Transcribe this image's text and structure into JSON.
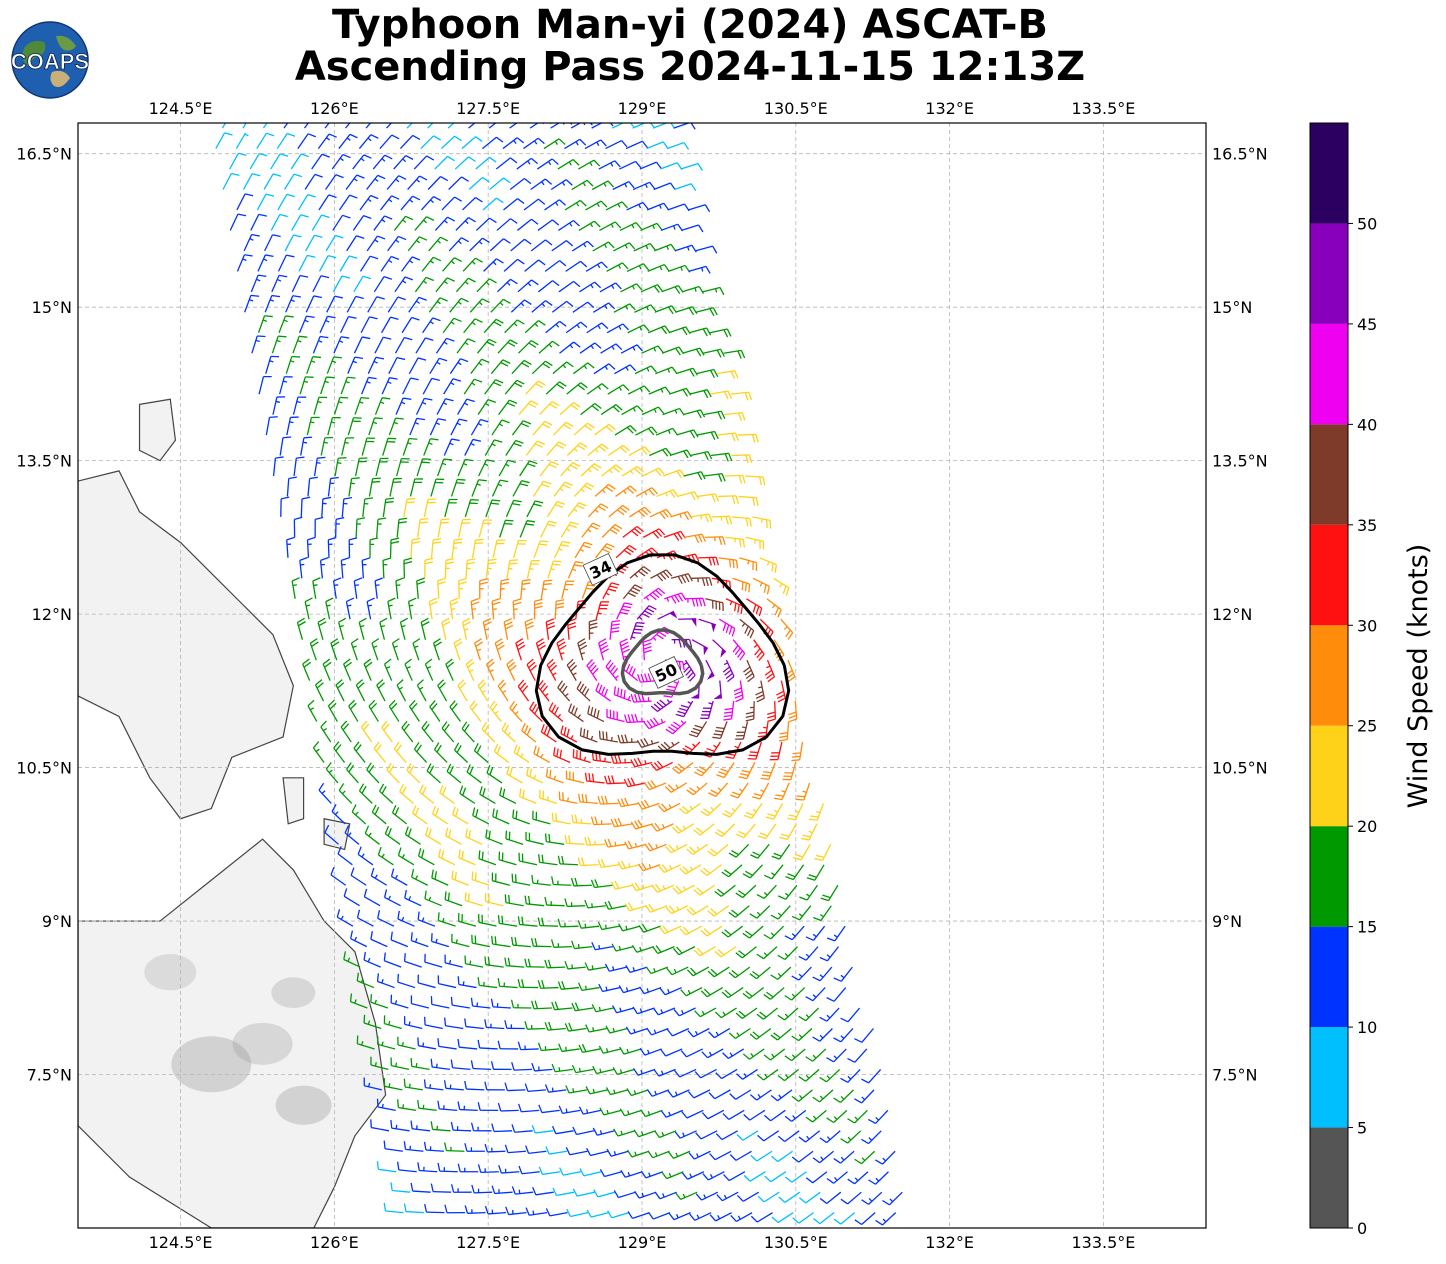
{
  "title": {
    "line1": "Typhoon Man-yi (2024) ASCAT-B",
    "line2": "Ascending Pass 2024-11-15 12:13Z"
  },
  "logo": {
    "text": "COAPS",
    "icon": "globe-logo-icon"
  },
  "map": {
    "lon_range": [
      123.5,
      134.5
    ],
    "lat_range": [
      6.0,
      16.8
    ],
    "lon_ticks": [
      {
        "value": 124.5,
        "label": "124.5°E"
      },
      {
        "value": 126.0,
        "label": "126°E"
      },
      {
        "value": 127.5,
        "label": "127.5°E"
      },
      {
        "value": 129.0,
        "label": "129°E"
      },
      {
        "value": 130.5,
        "label": "130.5°E"
      },
      {
        "value": 132.0,
        "label": "132°E"
      },
      {
        "value": 133.5,
        "label": "133.5°E"
      }
    ],
    "lat_ticks": [
      {
        "value": 16.5,
        "label": "16.5°N"
      },
      {
        "value": 15.0,
        "label": "15°N"
      },
      {
        "value": 13.5,
        "label": "13.5°N"
      },
      {
        "value": 12.0,
        "label": "12°N"
      },
      {
        "value": 10.5,
        "label": "10.5°N"
      },
      {
        "value": 9.0,
        "label": "9°N"
      },
      {
        "value": 7.5,
        "label": "7.5°N"
      }
    ],
    "grid": true,
    "grid_style": "dashed"
  },
  "storm": {
    "center": {
      "lon": 129.2,
      "lat": 11.5
    },
    "contours": [
      {
        "label": "34",
        "radius_deg": 1.1,
        "color": "#000000"
      },
      {
        "label": "50",
        "radius_deg": 0.35,
        "color": "#555555"
      }
    ]
  },
  "swath": {
    "top_left": {
      "lon": 124.8,
      "lat": 16.8
    },
    "top_right": {
      "lon": 129.3,
      "lat": 16.8
    },
    "bottom_right": {
      "lon": 131.7,
      "lat": 6.0
    },
    "bottom_left": {
      "lon": 126.7,
      "lat": 6.0
    }
  },
  "colorbar": {
    "label": "Wind Speed (knots)",
    "range": [
      0,
      55
    ],
    "ticks": [
      {
        "value": 0,
        "label": "0"
      },
      {
        "value": 5,
        "label": "5"
      },
      {
        "value": 10,
        "label": "10"
      },
      {
        "value": 15,
        "label": "15"
      },
      {
        "value": 20,
        "label": "20"
      },
      {
        "value": 25,
        "label": "25"
      },
      {
        "value": 30,
        "label": "30"
      },
      {
        "value": 35,
        "label": "35"
      },
      {
        "value": 40,
        "label": "40"
      },
      {
        "value": 45,
        "label": "45"
      },
      {
        "value": 50,
        "label": "50"
      }
    ],
    "bins": [
      {
        "from": 0,
        "to": 5,
        "color": "#555555"
      },
      {
        "from": 5,
        "to": 10,
        "color": "#00bfff"
      },
      {
        "from": 10,
        "to": 15,
        "color": "#0033ff"
      },
      {
        "from": 15,
        "to": 20,
        "color": "#009900"
      },
      {
        "from": 20,
        "to": 25,
        "color": "#ffd21a"
      },
      {
        "from": 25,
        "to": 30,
        "color": "#ff8c0a"
      },
      {
        "from": 30,
        "to": 35,
        "color": "#ff1111"
      },
      {
        "from": 35,
        "to": 40,
        "color": "#7f3b2a"
      },
      {
        "from": 40,
        "to": 45,
        "color": "#f000f0"
      },
      {
        "from": 45,
        "to": 50,
        "color": "#8800bb"
      },
      {
        "from": 50,
        "to": 55,
        "color": "#2c0060"
      }
    ]
  }
}
